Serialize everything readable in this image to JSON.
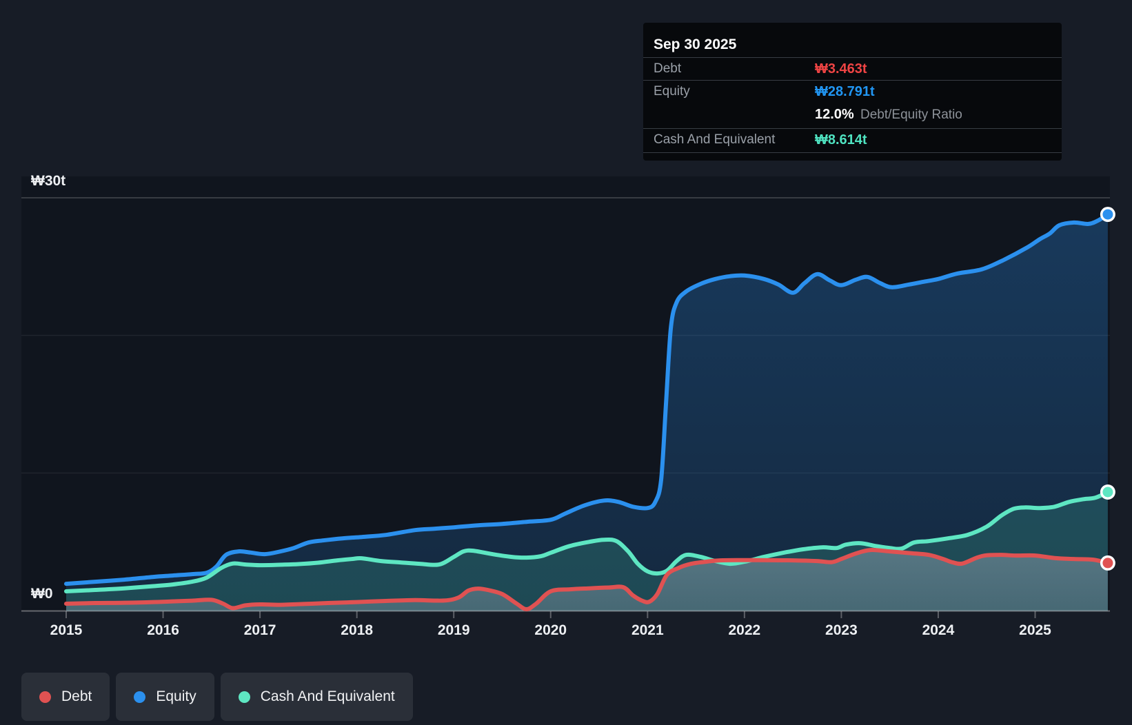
{
  "colors": {
    "page_bg": "#171c26",
    "plot_bg": "#10151e",
    "grid_major": "rgba(255,255,255,0.22)",
    "grid_minor": "rgba(255,255,255,0.07)",
    "axis_line": "rgba(255,255,255,0.35)",
    "tick": "rgba(255,255,255,0.3)",
    "axis_text": "#eef0f3",
    "debt": "#e05252",
    "equity": "#2b90ee",
    "cash": "#5ee6c2",
    "debt_fill_top": "rgba(200,205,220,0.34)",
    "debt_fill_bottom": "rgba(200,205,220,0.24)",
    "equity_fill_top": "rgba(43,144,238,0.30)",
    "equity_fill_bottom": "rgba(43,144,238,0.16)",
    "cash_fill": "rgba(80,220,180,0.18)"
  },
  "tooltip": {
    "date": "Sep 30 2025",
    "debt_label": "Debt",
    "debt_value": "₩3.463t",
    "equity_label": "Equity",
    "equity_value": "₩28.791t",
    "ratio_value": "12.0%",
    "ratio_label": "Debt/Equity Ratio",
    "cash_label": "Cash And Equivalent",
    "cash_value": "₩8.614t"
  },
  "legend": {
    "items": [
      {
        "label": "Debt"
      },
      {
        "label": "Equity"
      },
      {
        "label": "Cash And Equivalent"
      }
    ]
  },
  "chart_data": {
    "type": "area",
    "x_range": [
      2015,
      2025.75
    ],
    "ylim": [
      0,
      30
    ],
    "y_gridlines": [
      10,
      20,
      30
    ],
    "y_axis_labels": [
      {
        "text": "₩30t",
        "value": 30
      },
      {
        "text": "₩0",
        "value": 0
      }
    ],
    "x_tick_labels": [
      "2015",
      "2016",
      "2017",
      "2018",
      "2019",
      "2020",
      "2021",
      "2022",
      "2023",
      "2024",
      "2025"
    ],
    "x_tick_years": [
      2015,
      2016,
      2017,
      2018,
      2019,
      2020,
      2021,
      2022,
      2023,
      2024,
      2025
    ],
    "legend_position": "bottom",
    "grid": true,
    "units": "trillion KRW",
    "series": [
      {
        "name": "Equity",
        "color": "#2b90ee",
        "end_label": "₩28.791t",
        "points": [
          [
            2015.0,
            1.95
          ],
          [
            2015.3,
            2.1
          ],
          [
            2015.6,
            2.25
          ],
          [
            2015.9,
            2.45
          ],
          [
            2016.1,
            2.55
          ],
          [
            2016.3,
            2.65
          ],
          [
            2016.45,
            2.75
          ],
          [
            2016.55,
            3.2
          ],
          [
            2016.65,
            4.05
          ],
          [
            2016.78,
            4.3
          ],
          [
            2016.9,
            4.22
          ],
          [
            2017.05,
            4.1
          ],
          [
            2017.2,
            4.28
          ],
          [
            2017.35,
            4.55
          ],
          [
            2017.5,
            4.95
          ],
          [
            2017.65,
            5.1
          ],
          [
            2017.85,
            5.25
          ],
          [
            2018.05,
            5.35
          ],
          [
            2018.3,
            5.5
          ],
          [
            2018.6,
            5.85
          ],
          [
            2018.8,
            5.95
          ],
          [
            2019.0,
            6.05
          ],
          [
            2019.25,
            6.2
          ],
          [
            2019.5,
            6.3
          ],
          [
            2019.75,
            6.45
          ],
          [
            2020.0,
            6.6
          ],
          [
            2020.15,
            7.05
          ],
          [
            2020.35,
            7.65
          ],
          [
            2020.55,
            8.0
          ],
          [
            2020.7,
            7.9
          ],
          [
            2020.85,
            7.55
          ],
          [
            2021.0,
            7.45
          ],
          [
            2021.08,
            7.9
          ],
          [
            2021.14,
            9.5
          ],
          [
            2021.19,
            15.0
          ],
          [
            2021.24,
            20.5
          ],
          [
            2021.3,
            22.4
          ],
          [
            2021.4,
            23.2
          ],
          [
            2021.55,
            23.75
          ],
          [
            2021.7,
            24.1
          ],
          [
            2021.85,
            24.3
          ],
          [
            2022.0,
            24.35
          ],
          [
            2022.2,
            24.1
          ],
          [
            2022.35,
            23.7
          ],
          [
            2022.5,
            23.1
          ],
          [
            2022.62,
            23.8
          ],
          [
            2022.75,
            24.45
          ],
          [
            2022.88,
            24.0
          ],
          [
            2023.0,
            23.65
          ],
          [
            2023.15,
            24.05
          ],
          [
            2023.27,
            24.25
          ],
          [
            2023.4,
            23.8
          ],
          [
            2023.52,
            23.5
          ],
          [
            2023.7,
            23.7
          ],
          [
            2023.85,
            23.9
          ],
          [
            2024.0,
            24.1
          ],
          [
            2024.2,
            24.5
          ],
          [
            2024.45,
            24.8
          ],
          [
            2024.68,
            25.5
          ],
          [
            2024.92,
            26.4
          ],
          [
            2025.05,
            27.0
          ],
          [
            2025.15,
            27.4
          ],
          [
            2025.25,
            28.0
          ],
          [
            2025.4,
            28.2
          ],
          [
            2025.55,
            28.1
          ],
          [
            2025.65,
            28.35
          ],
          [
            2025.75,
            28.791
          ]
        ]
      },
      {
        "name": "Cash And Equivalent",
        "color": "#5ee6c2",
        "end_label": "₩8.614t",
        "points": [
          [
            2015.0,
            1.4
          ],
          [
            2015.3,
            1.5
          ],
          [
            2015.6,
            1.62
          ],
          [
            2015.9,
            1.78
          ],
          [
            2016.1,
            1.9
          ],
          [
            2016.3,
            2.1
          ],
          [
            2016.45,
            2.4
          ],
          [
            2016.6,
            3.1
          ],
          [
            2016.72,
            3.42
          ],
          [
            2016.85,
            3.35
          ],
          [
            2017.0,
            3.3
          ],
          [
            2017.2,
            3.33
          ],
          [
            2017.4,
            3.38
          ],
          [
            2017.6,
            3.48
          ],
          [
            2017.8,
            3.65
          ],
          [
            2017.95,
            3.75
          ],
          [
            2018.05,
            3.8
          ],
          [
            2018.25,
            3.6
          ],
          [
            2018.45,
            3.5
          ],
          [
            2018.65,
            3.4
          ],
          [
            2018.85,
            3.35
          ],
          [
            2019.0,
            3.9
          ],
          [
            2019.1,
            4.3
          ],
          [
            2019.2,
            4.35
          ],
          [
            2019.4,
            4.1
          ],
          [
            2019.6,
            3.9
          ],
          [
            2019.75,
            3.85
          ],
          [
            2019.9,
            3.95
          ],
          [
            2020.0,
            4.2
          ],
          [
            2020.2,
            4.7
          ],
          [
            2020.4,
            5.0
          ],
          [
            2020.55,
            5.15
          ],
          [
            2020.68,
            5.05
          ],
          [
            2020.8,
            4.3
          ],
          [
            2020.9,
            3.4
          ],
          [
            2021.0,
            2.85
          ],
          [
            2021.1,
            2.7
          ],
          [
            2021.2,
            2.9
          ],
          [
            2021.3,
            3.6
          ],
          [
            2021.4,
            4.05
          ],
          [
            2021.55,
            3.9
          ],
          [
            2021.7,
            3.6
          ],
          [
            2021.85,
            3.4
          ],
          [
            2022.0,
            3.55
          ],
          [
            2022.2,
            3.9
          ],
          [
            2022.4,
            4.2
          ],
          [
            2022.6,
            4.45
          ],
          [
            2022.8,
            4.6
          ],
          [
            2022.95,
            4.55
          ],
          [
            2023.05,
            4.8
          ],
          [
            2023.2,
            4.9
          ],
          [
            2023.35,
            4.7
          ],
          [
            2023.5,
            4.55
          ],
          [
            2023.62,
            4.5
          ],
          [
            2023.75,
            4.95
          ],
          [
            2023.9,
            5.05
          ],
          [
            2024.1,
            5.25
          ],
          [
            2024.3,
            5.5
          ],
          [
            2024.5,
            6.1
          ],
          [
            2024.65,
            6.9
          ],
          [
            2024.78,
            7.4
          ],
          [
            2024.9,
            7.5
          ],
          [
            2025.05,
            7.45
          ],
          [
            2025.2,
            7.55
          ],
          [
            2025.35,
            7.9
          ],
          [
            2025.5,
            8.1
          ],
          [
            2025.62,
            8.2
          ],
          [
            2025.75,
            8.614
          ]
        ]
      },
      {
        "name": "Debt",
        "color": "#e05252",
        "end_label": "₩3.463t",
        "points": [
          [
            2015.0,
            0.5
          ],
          [
            2015.3,
            0.55
          ],
          [
            2015.6,
            0.57
          ],
          [
            2015.9,
            0.62
          ],
          [
            2016.1,
            0.67
          ],
          [
            2016.3,
            0.72
          ],
          [
            2016.5,
            0.78
          ],
          [
            2016.62,
            0.5
          ],
          [
            2016.72,
            0.18
          ],
          [
            2016.85,
            0.38
          ],
          [
            2017.0,
            0.45
          ],
          [
            2017.2,
            0.42
          ],
          [
            2017.45,
            0.48
          ],
          [
            2017.7,
            0.55
          ],
          [
            2018.0,
            0.62
          ],
          [
            2018.3,
            0.7
          ],
          [
            2018.6,
            0.76
          ],
          [
            2018.9,
            0.73
          ],
          [
            2019.05,
            0.95
          ],
          [
            2019.15,
            1.45
          ],
          [
            2019.25,
            1.6
          ],
          [
            2019.35,
            1.5
          ],
          [
            2019.5,
            1.2
          ],
          [
            2019.65,
            0.5
          ],
          [
            2019.75,
            0.1
          ],
          [
            2019.85,
            0.5
          ],
          [
            2020.0,
            1.4
          ],
          [
            2020.2,
            1.55
          ],
          [
            2020.4,
            1.62
          ],
          [
            2020.6,
            1.68
          ],
          [
            2020.75,
            1.7
          ],
          [
            2020.85,
            1.1
          ],
          [
            2020.95,
            0.7
          ],
          [
            2021.02,
            0.65
          ],
          [
            2021.1,
            1.2
          ],
          [
            2021.2,
            2.6
          ],
          [
            2021.32,
            3.1
          ],
          [
            2021.45,
            3.4
          ],
          [
            2021.6,
            3.55
          ],
          [
            2021.75,
            3.65
          ],
          [
            2022.0,
            3.67
          ],
          [
            2022.25,
            3.66
          ],
          [
            2022.5,
            3.65
          ],
          [
            2022.75,
            3.6
          ],
          [
            2022.9,
            3.52
          ],
          [
            2023.0,
            3.75
          ],
          [
            2023.15,
            4.15
          ],
          [
            2023.3,
            4.4
          ],
          [
            2023.5,
            4.3
          ],
          [
            2023.7,
            4.18
          ],
          [
            2023.9,
            4.05
          ],
          [
            2024.05,
            3.75
          ],
          [
            2024.15,
            3.5
          ],
          [
            2024.25,
            3.42
          ],
          [
            2024.4,
            3.85
          ],
          [
            2024.5,
            4.02
          ],
          [
            2024.65,
            4.05
          ],
          [
            2024.8,
            4.0
          ],
          [
            2025.0,
            4.0
          ],
          [
            2025.2,
            3.82
          ],
          [
            2025.4,
            3.75
          ],
          [
            2025.6,
            3.7
          ],
          [
            2025.75,
            3.463
          ]
        ]
      }
    ]
  }
}
